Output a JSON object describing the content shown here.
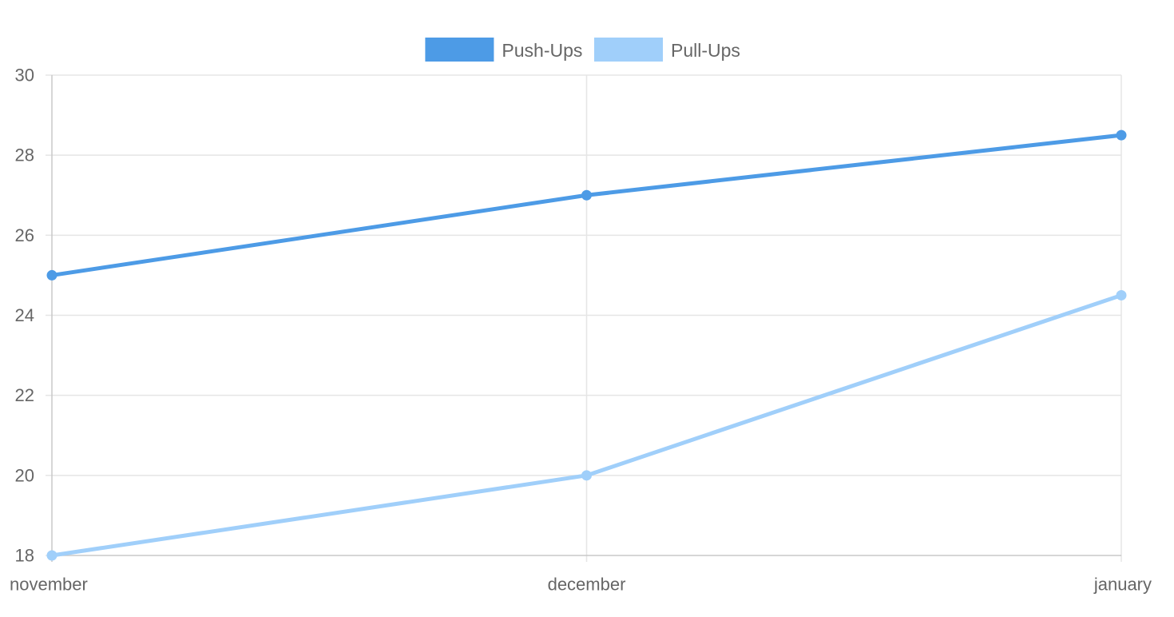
{
  "chart_data": {
    "type": "line",
    "categories": [
      "november",
      "december",
      "january"
    ],
    "series": [
      {
        "name": "Push-Ups",
        "values": [
          25,
          27,
          28.5
        ],
        "color": "#4d9be6"
      },
      {
        "name": "Pull-Ups",
        "values": [
          18,
          20,
          24.5
        ],
        "color": "#a0cffa"
      }
    ],
    "ylim": [
      18,
      30
    ],
    "yticks": [
      18,
      20,
      22,
      24,
      26,
      28,
      30
    ],
    "xlabel": "",
    "ylabel": "",
    "grid": true,
    "legend": "top-center",
    "colors": {
      "grid": "#e5e5e5",
      "axis": "#c8c8c8",
      "text": "#666666"
    }
  }
}
